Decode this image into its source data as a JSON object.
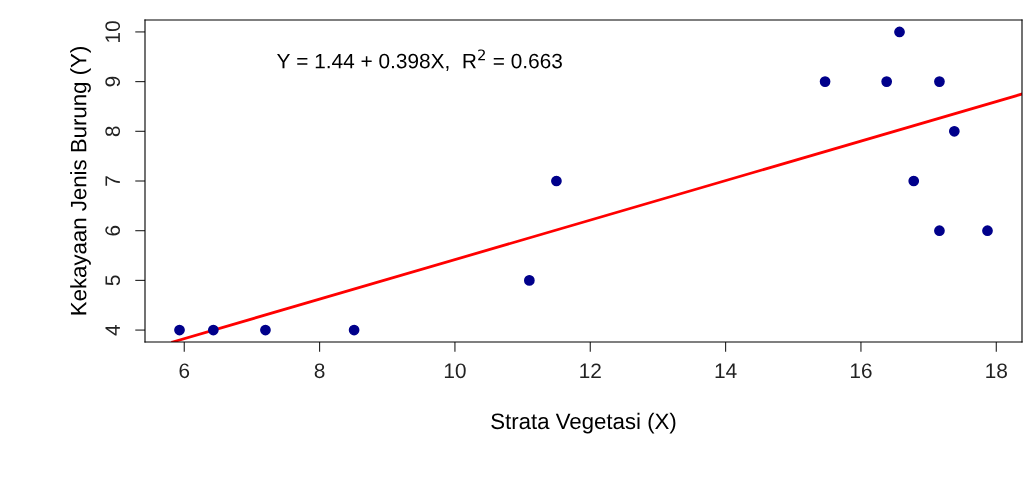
{
  "chart_data": {
    "type": "scatter",
    "xlabel": "Strata Vegetasi (X)",
    "ylabel": "Kekayaan Jenis Burung (Y)",
    "annotations": [
      {
        "text": "Y = 1.44 + 0.398X,  R$^{2}$ = 0.663"
      }
    ],
    "xlim": [
      5.42,
      18.38
    ],
    "ylim": [
      3.76,
      10.24
    ],
    "xticks": [
      6,
      8,
      10,
      12,
      14,
      16,
      18
    ],
    "yticks": [
      4,
      5,
      6,
      7,
      8,
      9,
      10
    ],
    "grid": false,
    "marker": "circle",
    "series": [
      {
        "color": "#00008b",
        "x": [
          5.93,
          6.43,
          7.2,
          8.51,
          11.1,
          11.5,
          15.47,
          16.38,
          16.57,
          16.78,
          17.16,
          17.16,
          17.38,
          17.87
        ],
        "values": [
          4,
          4,
          4,
          4,
          5,
          7,
          9,
          9,
          10,
          7,
          9,
          6,
          8,
          6
        ]
      },
      {
        "type": "line",
        "color": "#ff0000",
        "line_style": "solid",
        "marker": "none",
        "x": [
          5.83,
          18.38
        ],
        "values": [
          3.76,
          8.75
        ]
      }
    ]
  }
}
